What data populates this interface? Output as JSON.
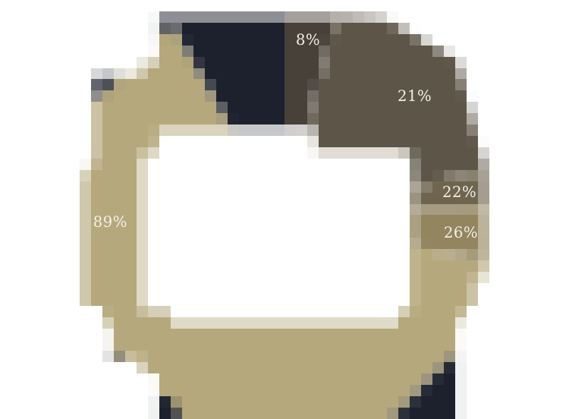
{
  "chart_data": {
    "type": "pie",
    "subtype": "donut",
    "title": "",
    "labels": [
      "8%",
      "21%",
      "22%",
      "26%",
      "89%"
    ],
    "values": [
      8,
      21,
      22,
      26,
      89
    ],
    "colors": [
      "#48413a",
      "#5d5548",
      "#6f654e",
      "#92855f",
      "#b5a87c"
    ],
    "track_color": "#1c212d",
    "background": "#ffffff",
    "label_text_color": "#f2efe8",
    "legend": "none",
    "grid": "off"
  }
}
